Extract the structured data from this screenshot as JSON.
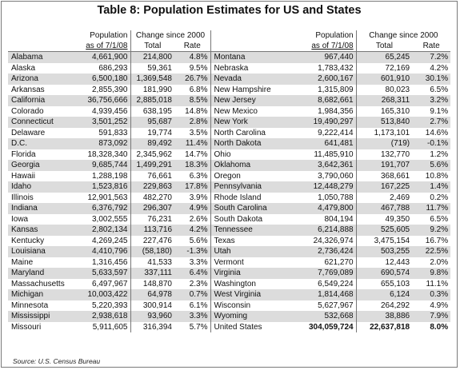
{
  "title": "Table 8: Population Estimates for US and States",
  "headers": {
    "population_line1": "Population",
    "population_line2": "as of 7/1/08",
    "change_group": "Change since 2000",
    "total": "Total",
    "rate": "Rate"
  },
  "left_rows": [
    {
      "state": "Alabama",
      "population": "4,661,900",
      "total": "214,800",
      "rate": "4.8%"
    },
    {
      "state": "Alaska",
      "population": "686,293",
      "total": "59,361",
      "rate": "9.5%"
    },
    {
      "state": "Arizona",
      "population": "6,500,180",
      "total": "1,369,548",
      "rate": "26.7%"
    },
    {
      "state": "Arkansas",
      "population": "2,855,390",
      "total": "181,990",
      "rate": "6.8%"
    },
    {
      "state": "California",
      "population": "36,756,666",
      "total": "2,885,018",
      "rate": "8.5%"
    },
    {
      "state": "Colorado",
      "population": "4,939,456",
      "total": "638,195",
      "rate": "14.8%"
    },
    {
      "state": "Connecticut",
      "population": "3,501,252",
      "total": "95,687",
      "rate": "2.8%"
    },
    {
      "state": "Delaware",
      "population": "591,833",
      "total": "19,774",
      "rate": "3.5%"
    },
    {
      "state": "D.C.",
      "population": "873,092",
      "total": "89,492",
      "rate": "11.4%"
    },
    {
      "state": "Florida",
      "population": "18,328,340",
      "total": "2,345,962",
      "rate": "14.7%"
    },
    {
      "state": "Georgia",
      "population": "9,685,744",
      "total": "1,499,291",
      "rate": "18.3%"
    },
    {
      "state": "Hawaii",
      "population": "1,288,198",
      "total": "76,661",
      "rate": "6.3%"
    },
    {
      "state": "Idaho",
      "population": "1,523,816",
      "total": "229,863",
      "rate": "17.8%"
    },
    {
      "state": "Illinois",
      "population": "12,901,563",
      "total": "482,270",
      "rate": "3.9%"
    },
    {
      "state": "Indiana",
      "population": "6,376,792",
      "total": "296,307",
      "rate": "4.9%"
    },
    {
      "state": "Iowa",
      "population": "3,002,555",
      "total": "76,231",
      "rate": "2.6%"
    },
    {
      "state": "Kansas",
      "population": "2,802,134",
      "total": "113,716",
      "rate": "4.2%"
    },
    {
      "state": "Kentucky",
      "population": "4,269,245",
      "total": "227,476",
      "rate": "5.6%"
    },
    {
      "state": "Louisiana",
      "population": "4,410,796",
      "total": "(58,180)",
      "rate": "-1.3%"
    },
    {
      "state": "Maine",
      "population": "1,316,456",
      "total": "41,533",
      "rate": "3.3%"
    },
    {
      "state": "Maryland",
      "population": "5,633,597",
      "total": "337,111",
      "rate": "6.4%"
    },
    {
      "state": "Massachusetts",
      "population": "6,497,967",
      "total": "148,870",
      "rate": "2.3%"
    },
    {
      "state": "Michigan",
      "population": "10,003,422",
      "total": "64,978",
      "rate": "0.7%"
    },
    {
      "state": "Minnesota",
      "population": "5,220,393",
      "total": "300,914",
      "rate": "6.1%"
    },
    {
      "state": "Mississippi",
      "population": "2,938,618",
      "total": "93,960",
      "rate": "3.3%"
    },
    {
      "state": "Missouri",
      "population": "5,911,605",
      "total": "316,394",
      "rate": "5.7%"
    }
  ],
  "right_rows": [
    {
      "state": "Montana",
      "population": "967,440",
      "total": "65,245",
      "rate": "7.2%"
    },
    {
      "state": "Nebraska",
      "population": "1,783,432",
      "total": "72,169",
      "rate": "4.2%"
    },
    {
      "state": "Nevada",
      "population": "2,600,167",
      "total": "601,910",
      "rate": "30.1%"
    },
    {
      "state": "New Hampshire",
      "population": "1,315,809",
      "total": "80,023",
      "rate": "6.5%"
    },
    {
      "state": "New Jersey",
      "population": "8,682,661",
      "total": "268,311",
      "rate": "3.2%"
    },
    {
      "state": "New Mexico",
      "population": "1,984,356",
      "total": "165,310",
      "rate": "9.1%"
    },
    {
      "state": "New York",
      "population": "19,490,297",
      "total": "513,840",
      "rate": "2.7%"
    },
    {
      "state": "North Carolina",
      "population": "9,222,414",
      "total": "1,173,101",
      "rate": "14.6%"
    },
    {
      "state": "North Dakota",
      "population": "641,481",
      "total": "(719)",
      "rate": "-0.1%"
    },
    {
      "state": "Ohio",
      "population": "11,485,910",
      "total": "132,770",
      "rate": "1.2%"
    },
    {
      "state": "Oklahoma",
      "population": "3,642,361",
      "total": "191,707",
      "rate": "5.6%"
    },
    {
      "state": "Oregon",
      "population": "3,790,060",
      "total": "368,661",
      "rate": "10.8%"
    },
    {
      "state": "Pennsylvania",
      "population": "12,448,279",
      "total": "167,225",
      "rate": "1.4%"
    },
    {
      "state": "Rhode Island",
      "population": "1,050,788",
      "total": "2,469",
      "rate": "0.2%"
    },
    {
      "state": "South Carolina",
      "population": "4,479,800",
      "total": "467,788",
      "rate": "11.7%"
    },
    {
      "state": "South Dakota",
      "population": "804,194",
      "total": "49,350",
      "rate": "6.5%"
    },
    {
      "state": "Tennessee",
      "population": "6,214,888",
      "total": "525,605",
      "rate": "9.2%"
    },
    {
      "state": "Texas",
      "population": "24,326,974",
      "total": "3,475,154",
      "rate": "16.7%"
    },
    {
      "state": "Utah",
      "population": "2,736,424",
      "total": "503,255",
      "rate": "22.5%"
    },
    {
      "state": "Vermont",
      "population": "621,270",
      "total": "12,443",
      "rate": "2.0%"
    },
    {
      "state": "Virginia",
      "population": "7,769,089",
      "total": "690,574",
      "rate": "9.8%"
    },
    {
      "state": "Washington",
      "population": "6,549,224",
      "total": "655,103",
      "rate": "11.1%"
    },
    {
      "state": "West Virginia",
      "population": "1,814,468",
      "total": "6,124",
      "rate": "0.3%"
    },
    {
      "state": "Wisconsin",
      "population": "5,627,967",
      "total": "264,292",
      "rate": "4.9%"
    },
    {
      "state": "Wyoming",
      "population": "532,668",
      "total": "38,886",
      "rate": "7.9%"
    },
    {
      "state": "United States",
      "population": "304,059,724",
      "total": "22,637,818",
      "rate": "8.0%"
    }
  ],
  "source": "Source: U.S. Census Bureau"
}
